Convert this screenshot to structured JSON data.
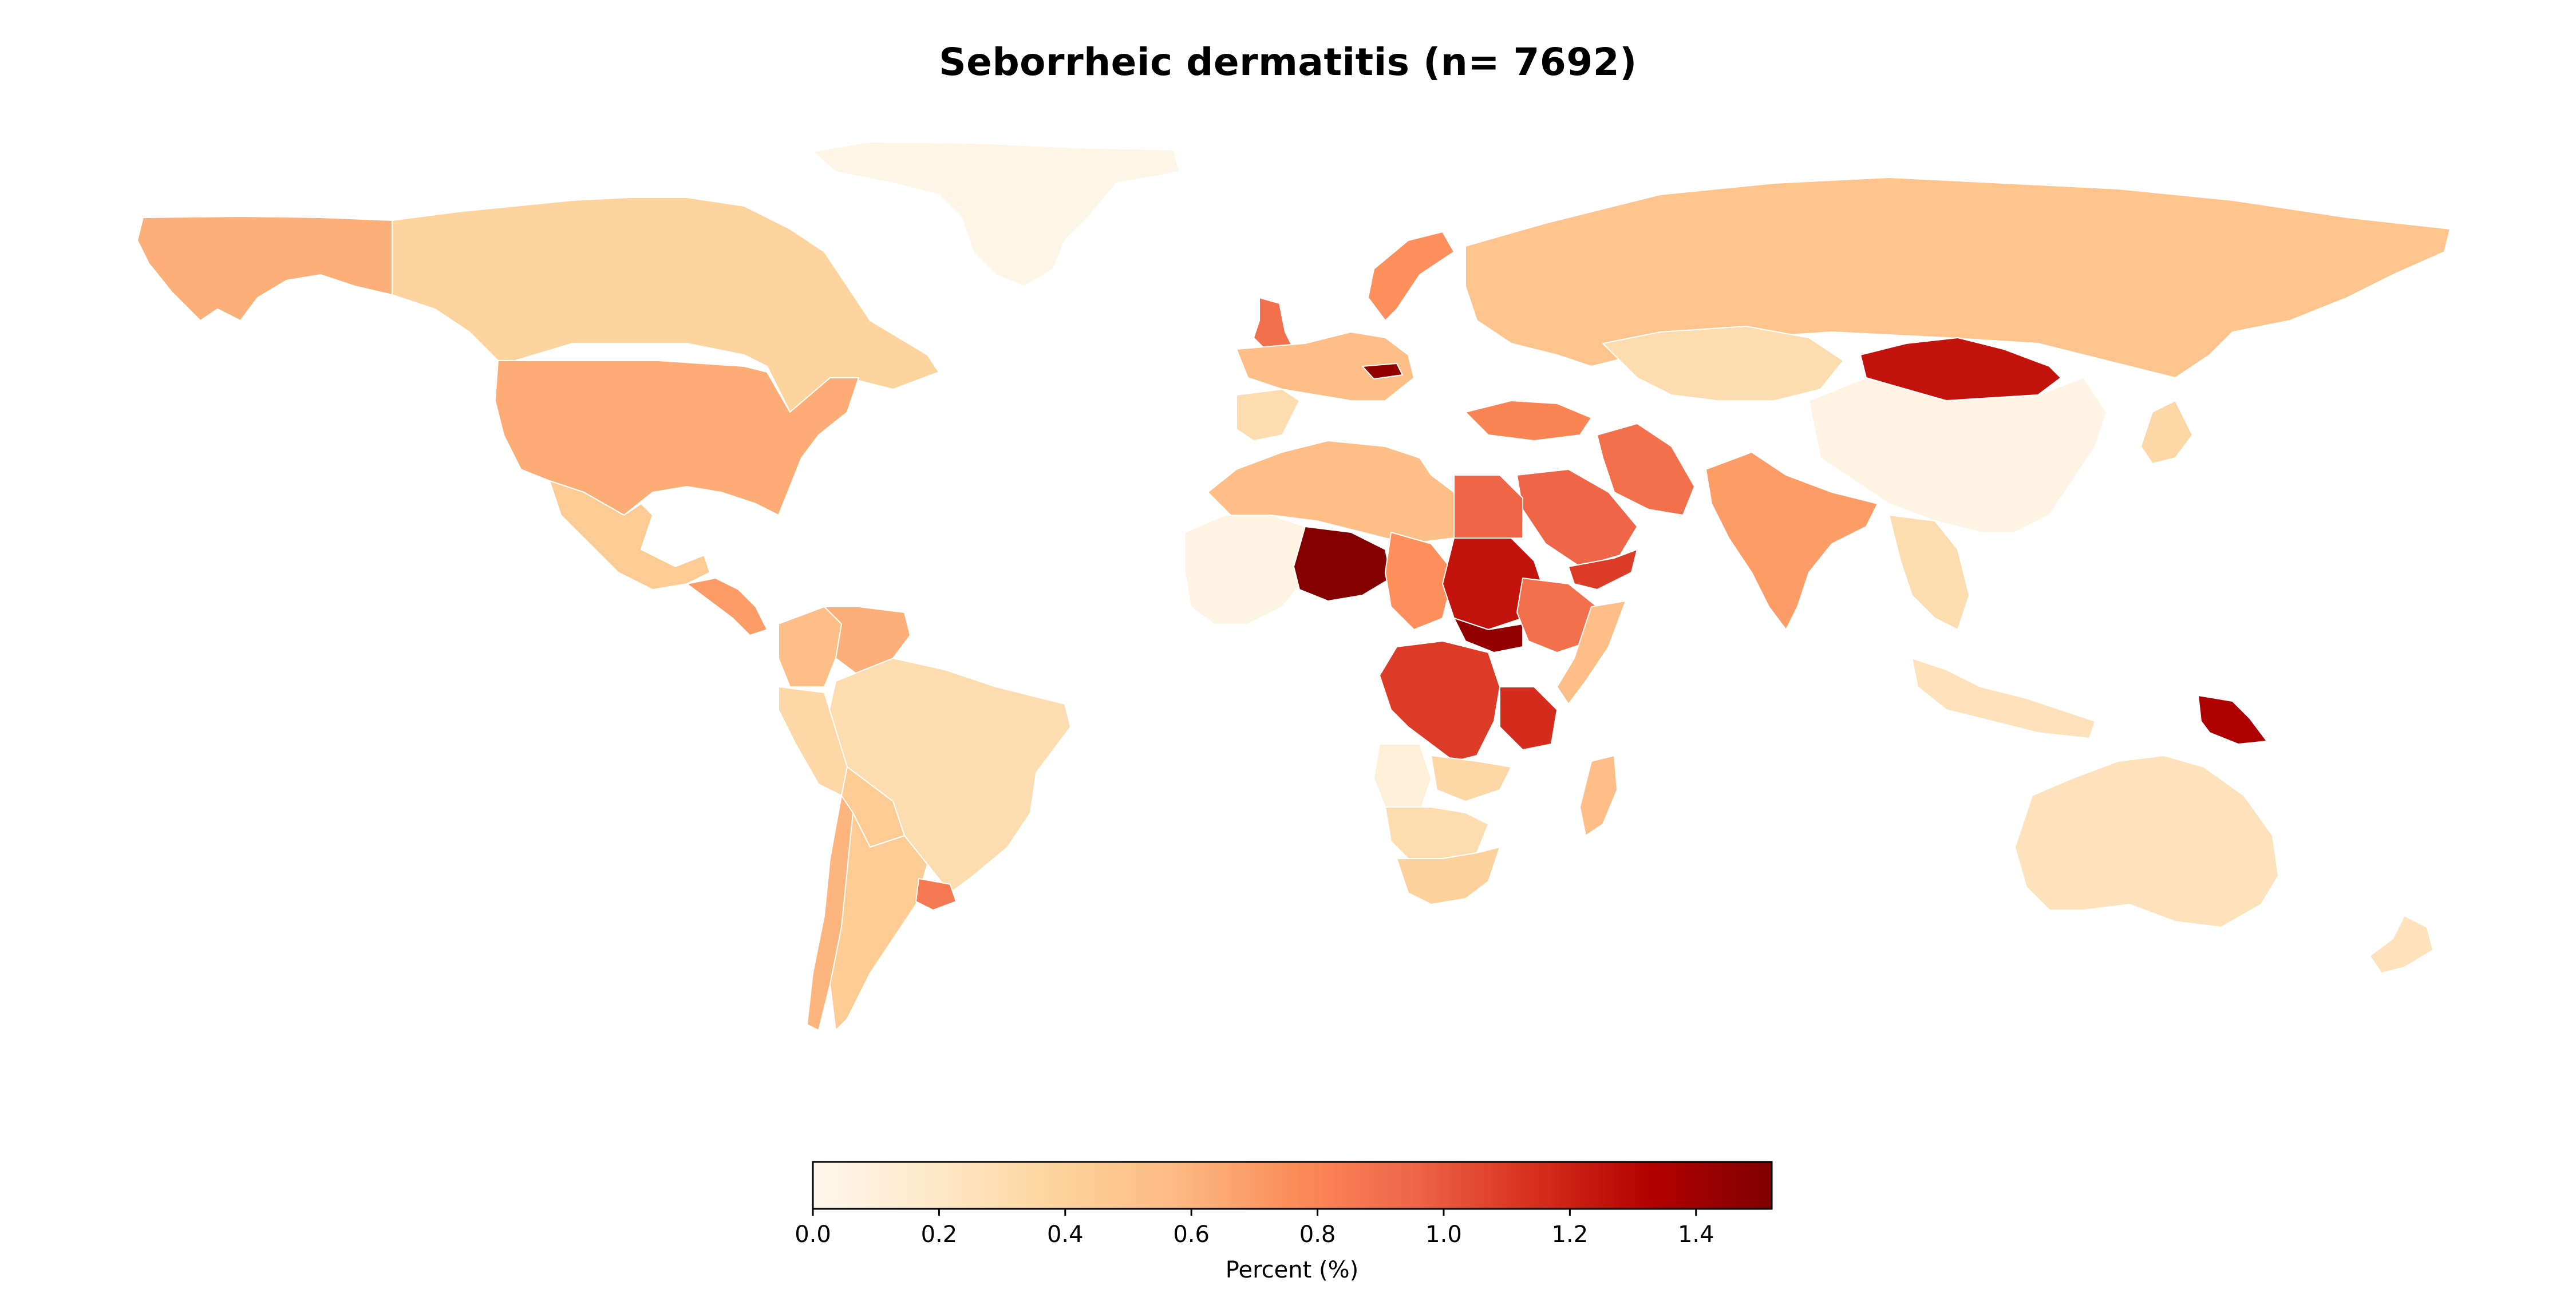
{
  "title": "Seborrheic dermatitis (n= 7692)",
  "colorbar": {
    "label": "Percent (%)",
    "min": 0.0,
    "max": 1.52,
    "ticks": [
      "0.0",
      "0.2",
      "0.4",
      "0.6",
      "0.8",
      "1.0",
      "1.2",
      "1.4"
    ],
    "tick_values": [
      0.0,
      0.2,
      0.4,
      0.6,
      0.8,
      1.0,
      1.2,
      1.4
    ],
    "colormap": "OrRd",
    "stops": [
      "#fff7ec",
      "#fee8c8",
      "#fdd49e",
      "#fdbb84",
      "#fc8d59",
      "#ef6548",
      "#d7301f",
      "#b30000",
      "#7f0000"
    ]
  },
  "chart_data": {
    "type": "choropleth",
    "title": "Seborrheic dermatitis (n= 7692)",
    "value_label": "Percent (%)",
    "range": [
      0.0,
      1.52
    ],
    "regions": [
      {
        "name": "Greenland",
        "value": 0.03
      },
      {
        "name": "Alaska",
        "value": 0.62
      },
      {
        "name": "Canada",
        "value": 0.38
      },
      {
        "name": "United States",
        "value": 0.63
      },
      {
        "name": "Mexico",
        "value": 0.45
      },
      {
        "name": "Central America",
        "value": 0.7
      },
      {
        "name": "Colombia",
        "value": 0.55
      },
      {
        "name": "Venezuela",
        "value": 0.62
      },
      {
        "name": "Brazil",
        "value": 0.3
      },
      {
        "name": "Peru",
        "value": 0.35
      },
      {
        "name": "Bolivia",
        "value": 0.45
      },
      {
        "name": "Chile",
        "value": 0.6
      },
      {
        "name": "Argentina",
        "value": 0.45
      },
      {
        "name": "Uruguay",
        "value": 0.85
      },
      {
        "name": "Norway/Sweden",
        "value": 0.75
      },
      {
        "name": "United Kingdom",
        "value": 0.9
      },
      {
        "name": "Western Europe",
        "value": 0.55
      },
      {
        "name": "Iberia",
        "value": 0.3
      },
      {
        "name": "Austria",
        "value": 1.45
      },
      {
        "name": "Russia",
        "value": 0.5
      },
      {
        "name": "Kazakhstan",
        "value": 0.3
      },
      {
        "name": "Mongolia",
        "value": 1.25
      },
      {
        "name": "China",
        "value": 0.05
      },
      {
        "name": "Japan",
        "value": 0.35
      },
      {
        "name": "Turkey",
        "value": 0.8
      },
      {
        "name": "Iran",
        "value": 0.9
      },
      {
        "name": "Saudi Arabia",
        "value": 0.95
      },
      {
        "name": "Yemen",
        "value": 1.1
      },
      {
        "name": "India",
        "value": 0.7
      },
      {
        "name": "Southeast Asia",
        "value": 0.3
      },
      {
        "name": "Indonesia",
        "value": 0.25
      },
      {
        "name": "Papua New Guinea",
        "value": 1.35
      },
      {
        "name": "Australia",
        "value": 0.25
      },
      {
        "name": "New Zealand",
        "value": 0.25
      },
      {
        "name": "North Africa",
        "value": 0.55
      },
      {
        "name": "Egypt",
        "value": 0.95
      },
      {
        "name": "West Africa",
        "value": 0.05
      },
      {
        "name": "Niger",
        "value": 1.5
      },
      {
        "name": "Chad",
        "value": 0.75
      },
      {
        "name": "Sudan",
        "value": 1.25
      },
      {
        "name": "South Sudan",
        "value": 1.45
      },
      {
        "name": "Ethiopia",
        "value": 0.9
      },
      {
        "name": "Somalia",
        "value": 0.55
      },
      {
        "name": "DR Congo",
        "value": 1.1
      },
      {
        "name": "Tanzania",
        "value": 1.15
      },
      {
        "name": "Angola",
        "value": 0.1
      },
      {
        "name": "Zambia",
        "value": 0.35
      },
      {
        "name": "Namibia/Botswana",
        "value": 0.3
      },
      {
        "name": "South Africa",
        "value": 0.4
      },
      {
        "name": "Madagascar",
        "value": 0.55
      }
    ]
  }
}
